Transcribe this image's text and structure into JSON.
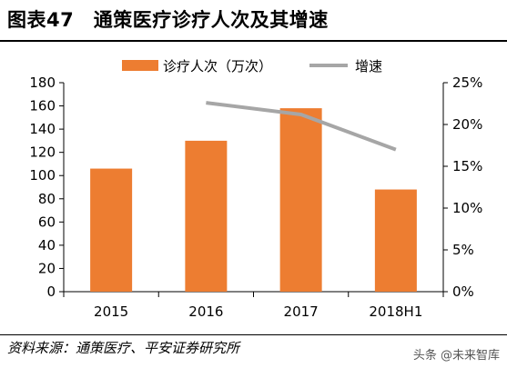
{
  "title": "图表47　通策医疗诊疗人次及其增速",
  "source": "资料来源：通策医疗、平安证券研究所",
  "watermark": "头条 @未来智库",
  "colors": {
    "bar": "#ED7D31",
    "line": "#A6A6A6",
    "axis": "#000000"
  },
  "chart_data": {
    "type": "bar",
    "categories": [
      "2015",
      "2016",
      "2017",
      "2018H1"
    ],
    "series": [
      {
        "name": "诊疗人次（万次）",
        "type": "bar",
        "axis": "left",
        "values": [
          106,
          130,
          158,
          88
        ]
      },
      {
        "name": "增速",
        "type": "line",
        "axis": "right",
        "values": [
          null,
          22.6,
          21.2,
          17.0
        ]
      }
    ],
    "left_axis": {
      "ylim": [
        0,
        180
      ],
      "ticks": [
        "0",
        "20",
        "40",
        "60",
        "80",
        "100",
        "120",
        "140",
        "160",
        "180"
      ]
    },
    "right_axis": {
      "ylim": [
        0,
        25
      ],
      "ticks": [
        "0%",
        "5%",
        "10%",
        "15%",
        "20%",
        "25%"
      ]
    },
    "legend_position": "top",
    "grid": false
  }
}
